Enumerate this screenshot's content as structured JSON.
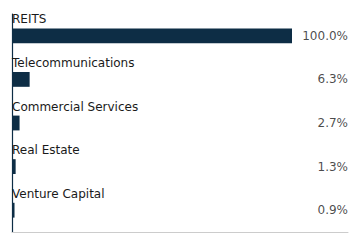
{
  "chart_data": {
    "type": "bar",
    "orientation": "horizontal",
    "categories": [
      "REITS",
      "Telecommunications",
      "Commercial Services",
      "Real Estate",
      "Venture Capital"
    ],
    "values": [
      100.0,
      6.3,
      2.7,
      1.3,
      0.9
    ],
    "value_labels": [
      "100.0%",
      "6.3%",
      "2.7%",
      "1.3%",
      "0.9%"
    ],
    "data_labels": true,
    "color": "#0d2d45",
    "xlim": [
      0,
      120
    ],
    "tick_labels": false,
    "grid": false
  }
}
